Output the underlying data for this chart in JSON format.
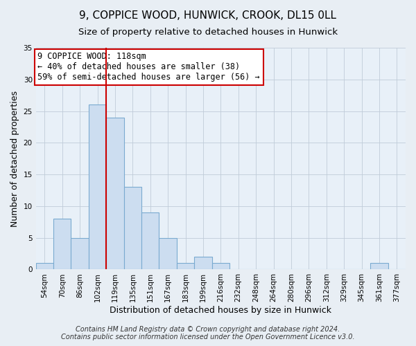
{
  "title": "9, COPPICE WOOD, HUNWICK, CROOK, DL15 0LL",
  "subtitle": "Size of property relative to detached houses in Hunwick",
  "xlabel": "Distribution of detached houses by size in Hunwick",
  "ylabel": "Number of detached properties",
  "bar_labels": [
    "54sqm",
    "70sqm",
    "86sqm",
    "102sqm",
    "119sqm",
    "135sqm",
    "151sqm",
    "167sqm",
    "183sqm",
    "199sqm",
    "216sqm",
    "232sqm",
    "248sqm",
    "264sqm",
    "280sqm",
    "296sqm",
    "312sqm",
    "329sqm",
    "345sqm",
    "361sqm",
    "377sqm"
  ],
  "bar_values": [
    1,
    8,
    5,
    26,
    24,
    13,
    9,
    5,
    1,
    2,
    1,
    0,
    0,
    0,
    0,
    0,
    0,
    0,
    0,
    1,
    0
  ],
  "bar_color": "#ccddf0",
  "bar_edge_color": "#7aaad0",
  "ylim": [
    0,
    35
  ],
  "yticks": [
    0,
    5,
    10,
    15,
    20,
    25,
    30,
    35
  ],
  "vline_x": 3.5,
  "vline_color": "#cc0000",
  "annotation_title": "9 COPPICE WOOD: 118sqm",
  "annotation_line1": "← 40% of detached houses are smaller (38)",
  "annotation_line2": "59% of semi-detached houses are larger (56) →",
  "annotation_box_color": "#ffffff",
  "annotation_box_edge": "#cc0000",
  "footer1": "Contains HM Land Registry data © Crown copyright and database right 2024.",
  "footer2": "Contains public sector information licensed under the Open Government Licence v3.0.",
  "bg_color": "#e8eef4",
  "plot_bg_color": "#e8f0f8",
  "grid_color": "#c0ccd8",
  "title_fontsize": 11,
  "subtitle_fontsize": 9.5,
  "axis_label_fontsize": 9,
  "tick_fontsize": 7.5,
  "footer_fontsize": 7,
  "ann_fontsize": 8.5
}
